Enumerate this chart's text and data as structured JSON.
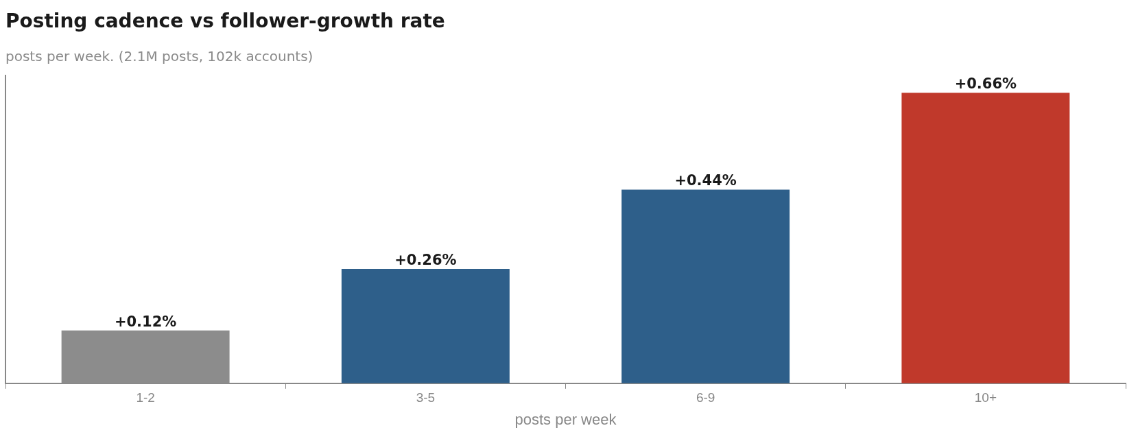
{
  "chart_data": {
    "type": "bar",
    "title": "Posting cadence vs follower-growth rate",
    "subtitle": "posts per week. (2.1M posts, 102k accounts)",
    "xlabel": "posts per week",
    "categories": [
      "1-2",
      "3-5",
      "6-9",
      "10+"
    ],
    "values": [
      0.12,
      0.26,
      0.44,
      0.66
    ],
    "colors": [
      "#8c8c8c",
      "#2e5f8a",
      "#2e5f8a",
      "#c0392b"
    ],
    "value_labels": [
      "+0.12%",
      "+0.26%",
      "+0.44%",
      "+0.66%"
    ],
    "relative": false,
    "tick_labels": "x",
    "grid": false,
    "legend": false
  }
}
